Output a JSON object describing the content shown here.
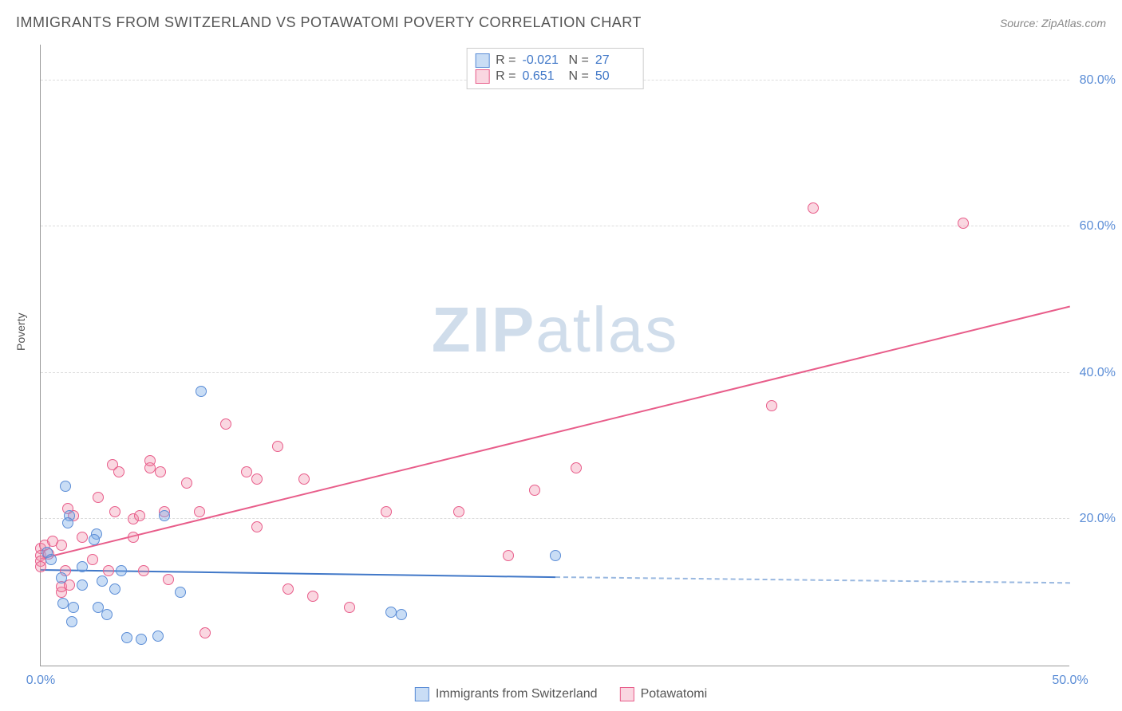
{
  "title": "IMMIGRANTS FROM SWITZERLAND VS POTAWATOMI POVERTY CORRELATION CHART",
  "source_label": "Source: ZipAtlas.com",
  "ylabel": "Poverty",
  "watermark": "ZIPatlas",
  "chart": {
    "type": "scatter",
    "xlim": [
      0,
      50
    ],
    "ylim": [
      0,
      85
    ],
    "xtick_labels": [
      "0.0%",
      "50.0%"
    ],
    "xtick_values": [
      0,
      50
    ],
    "ytick_labels": [
      "20.0%",
      "40.0%",
      "60.0%",
      "80.0%"
    ],
    "ytick_values": [
      20,
      40,
      60,
      80
    ],
    "grid_color": "#dddddd",
    "background_color": "#ffffff",
    "axis_color": "#999999",
    "tick_label_color": "#5b8dd6",
    "marker_radius": 7,
    "series": [
      {
        "name": "Immigrants from Switzerland",
        "color_fill": "rgba(120,170,230,0.4)",
        "color_stroke": "#5b8dd6",
        "line_color": "#4178c8",
        "R": "-0.021",
        "N": "27",
        "regression": {
          "x1": 0,
          "y1": 13.0,
          "x2_solid": 25,
          "y2_solid": 12.0,
          "x2_dash": 50,
          "y2_dash": 11.2
        },
        "points": [
          [
            0.3,
            15.5
          ],
          [
            0.5,
            14.5
          ],
          [
            1.2,
            24.5
          ],
          [
            1.4,
            20.5
          ],
          [
            1.3,
            19.5
          ],
          [
            2.0,
            11.0
          ],
          [
            1.6,
            8.0
          ],
          [
            1.1,
            8.5
          ],
          [
            2.7,
            18.0
          ],
          [
            2.6,
            17.2
          ],
          [
            2.0,
            13.5
          ],
          [
            3.0,
            11.5
          ],
          [
            3.6,
            10.5
          ],
          [
            2.8,
            8.0
          ],
          [
            3.2,
            7.0
          ],
          [
            1.5,
            6.0
          ],
          [
            4.2,
            3.8
          ],
          [
            4.9,
            3.6
          ],
          [
            5.7,
            4.0
          ],
          [
            6.0,
            20.5
          ],
          [
            7.8,
            37.5
          ],
          [
            6.8,
            10.0
          ],
          [
            3.9,
            13.0
          ],
          [
            17.5,
            7.0
          ],
          [
            17.0,
            7.3
          ],
          [
            25.0,
            15.0
          ],
          [
            1.0,
            12.0
          ]
        ]
      },
      {
        "name": "Potawatomi",
        "color_fill": "rgba(240,140,170,0.35)",
        "color_stroke": "#e85d8a",
        "line_color": "#e85d8a",
        "R": "0.651",
        "N": "50",
        "regression": {
          "x1": 0,
          "y1": 14.5,
          "x2_solid": 50,
          "y2_solid": 49.0,
          "x2_dash": 50,
          "y2_dash": 49.0
        },
        "points": [
          [
            0.0,
            16.0
          ],
          [
            0.0,
            15.0
          ],
          [
            0.0,
            14.3
          ],
          [
            0.0,
            13.5
          ],
          [
            0.2,
            16.5
          ],
          [
            0.4,
            15.3
          ],
          [
            0.6,
            17.0
          ],
          [
            1.0,
            10.0
          ],
          [
            1.0,
            10.8
          ],
          [
            1.2,
            13.0
          ],
          [
            1.4,
            11.0
          ],
          [
            1.0,
            16.5
          ],
          [
            1.6,
            20.5
          ],
          [
            1.3,
            21.5
          ],
          [
            2.5,
            14.5
          ],
          [
            2.0,
            17.5
          ],
          [
            2.8,
            23.0
          ],
          [
            3.3,
            13.0
          ],
          [
            3.5,
            27.5
          ],
          [
            3.6,
            21.0
          ],
          [
            3.8,
            26.5
          ],
          [
            4.5,
            17.5
          ],
          [
            4.5,
            20.0
          ],
          [
            4.8,
            20.5
          ],
          [
            5.0,
            13.0
          ],
          [
            5.3,
            27.0
          ],
          [
            5.3,
            28.0
          ],
          [
            5.8,
            26.5
          ],
          [
            6.0,
            21.0
          ],
          [
            6.2,
            11.8
          ],
          [
            7.1,
            25.0
          ],
          [
            7.7,
            21.0
          ],
          [
            9.0,
            33.0
          ],
          [
            8.0,
            4.5
          ],
          [
            10.0,
            26.5
          ],
          [
            10.5,
            19.0
          ],
          [
            10.5,
            25.5
          ],
          [
            11.5,
            30.0
          ],
          [
            12.0,
            10.5
          ],
          [
            12.8,
            25.5
          ],
          [
            13.2,
            9.5
          ],
          [
            15.0,
            8.0
          ],
          [
            16.8,
            21.0
          ],
          [
            20.3,
            21.0
          ],
          [
            22.7,
            15.0
          ],
          [
            24.0,
            24.0
          ],
          [
            26.0,
            27.0
          ],
          [
            35.5,
            35.5
          ],
          [
            37.5,
            62.5
          ],
          [
            44.8,
            60.5
          ]
        ]
      }
    ]
  },
  "legend_top": {
    "rows": [
      {
        "swatch": "a",
        "R_label": "R =",
        "R": "-0.021",
        "N_label": "N =",
        "N": "27"
      },
      {
        "swatch": "b",
        "R_label": "R =",
        "R": "0.651",
        "N_label": "N =",
        "N": "50"
      }
    ]
  },
  "legend_bottom": {
    "items": [
      {
        "swatch": "a",
        "label": "Immigrants from Switzerland"
      },
      {
        "swatch": "b",
        "label": "Potawatomi"
      }
    ]
  }
}
